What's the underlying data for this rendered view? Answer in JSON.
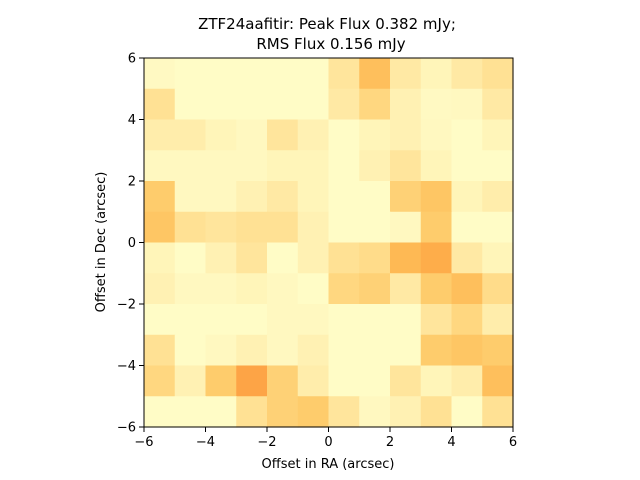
{
  "chart_data": {
    "type": "heatmap",
    "title_line1": "ZTF24aafitir: Peak Flux 0.382 mJy;",
    "title_line2": "RMS Flux 0.156 mJy",
    "xlabel": "Offset in RA (arcsec)",
    "ylabel": "Offset in Dec (arcsec)",
    "xlim": [
      -6,
      6
    ],
    "ylim": [
      -6,
      6
    ],
    "xticks": [
      -6,
      -4,
      -2,
      0,
      2,
      4,
      6
    ],
    "yticks": [
      -6,
      -4,
      -2,
      0,
      2,
      4,
      6
    ],
    "grid": false,
    "colorscale": [
      "#ffffcc",
      "#fff1b3",
      "#ffe194",
      "#fecc6c",
      "#feb24c",
      "#fd9f44"
    ],
    "value_range": [
      0,
      1
    ],
    "row_order": "top-to-bottom (Dec +6 to -6)",
    "cells": [
      [
        0.08,
        0.05,
        0.05,
        0.05,
        0.05,
        0.05,
        0.35,
        0.7,
        0.3,
        0.15,
        0.3,
        0.4
      ],
      [
        0.4,
        0.05,
        0.05,
        0.05,
        0.05,
        0.05,
        0.3,
        0.5,
        0.2,
        0.08,
        0.1,
        0.3
      ],
      [
        0.25,
        0.25,
        0.15,
        0.1,
        0.35,
        0.2,
        0.05,
        0.15,
        0.2,
        0.1,
        0.05,
        0.15
      ],
      [
        0.1,
        0.1,
        0.1,
        0.1,
        0.15,
        0.15,
        0.05,
        0.2,
        0.35,
        0.15,
        0.05,
        0.05
      ],
      [
        0.6,
        0.1,
        0.1,
        0.2,
        0.3,
        0.15,
        0.05,
        0.05,
        0.55,
        0.65,
        0.15,
        0.25
      ],
      [
        0.65,
        0.4,
        0.35,
        0.4,
        0.4,
        0.2,
        0.05,
        0.05,
        0.1,
        0.6,
        0.05,
        0.05
      ],
      [
        0.15,
        0.05,
        0.2,
        0.35,
        0.05,
        0.2,
        0.4,
        0.45,
        0.75,
        0.85,
        0.3,
        0.15
      ],
      [
        0.2,
        0.1,
        0.1,
        0.15,
        0.1,
        0.05,
        0.5,
        0.55,
        0.3,
        0.6,
        0.7,
        0.45
      ],
      [
        0.05,
        0.05,
        0.05,
        0.05,
        0.1,
        0.1,
        0.05,
        0.05,
        0.05,
        0.35,
        0.5,
        0.25
      ],
      [
        0.4,
        0.05,
        0.1,
        0.2,
        0.1,
        0.2,
        0.05,
        0.05,
        0.05,
        0.6,
        0.65,
        0.6
      ],
      [
        0.5,
        0.2,
        0.6,
        0.95,
        0.55,
        0.25,
        0.05,
        0.05,
        0.35,
        0.15,
        0.25,
        0.7
      ],
      [
        0.05,
        0.05,
        0.05,
        0.4,
        0.55,
        0.6,
        0.35,
        0.1,
        0.2,
        0.4,
        0.05,
        0.4
      ]
    ]
  }
}
